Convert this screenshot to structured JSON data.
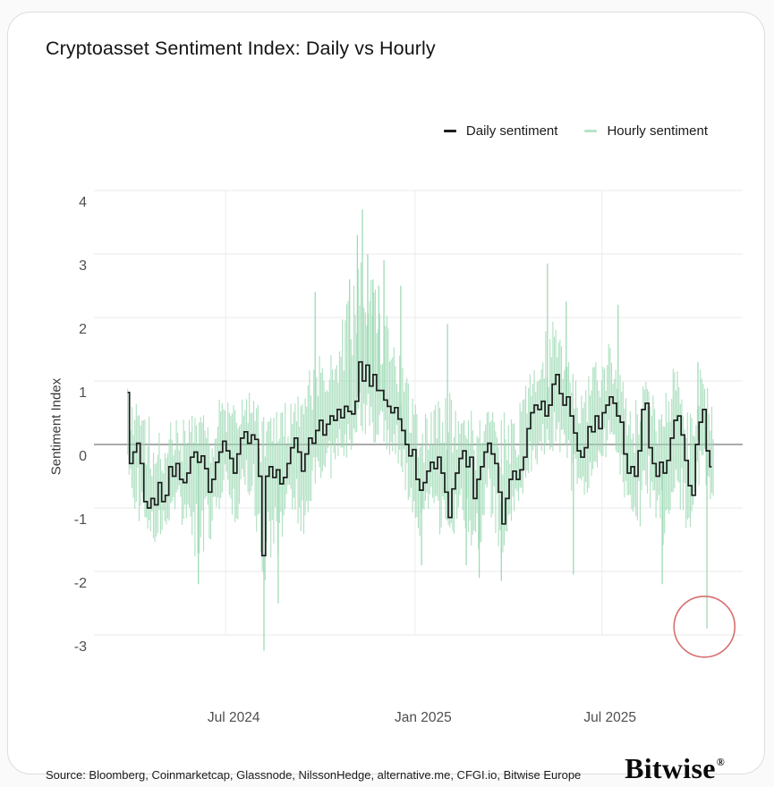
{
  "card": {
    "title": "Cryptoasset Sentiment Index: Daily vs Hourly",
    "source": "Source: Bloomberg, Coinmarketcap, Glassnode, NilssonHedge, alternative.me, CFGI.io, Bitwise Europe",
    "logo_text": "Bitwise",
    "logo_registered": "®"
  },
  "legend": {
    "daily": {
      "label": "Daily sentiment",
      "color": "#1d1d1d"
    },
    "hourly": {
      "label": "Hourly sentiment",
      "color": "#b7e4c7"
    }
  },
  "colors": {
    "grid": "#e8e8e8",
    "grid_vertical": "#ededed",
    "zero_line": "#8f8f8f",
    "daily_line": "#1d1d1d",
    "hourly_stroke": "#9ad8b2",
    "annotation_red": "#d66f6f"
  },
  "chart_data": {
    "type": "line",
    "title": "Cryptoasset Sentiment Index: Daily vs Hourly",
    "xlabel": "",
    "ylabel": "Sentiment Index",
    "ylim": [
      -3.5,
      4.3
    ],
    "yticks": [
      4,
      3,
      2,
      1,
      0,
      -1,
      -2,
      -3
    ],
    "xticks": [
      {
        "label": "Jul 2024",
        "f": 0.203
      },
      {
        "label": "Jan 2025",
        "f": 0.495
      },
      {
        "label": "Jul 2025",
        "f": 0.783
      }
    ],
    "grid": "horizontal gridlines at integer ticks, vertical at month ticks, emphasized zero line",
    "legend_position": "top-right",
    "series": [
      {
        "name": "Daily sentiment",
        "color": "#1d1d1d",
        "f_start": 0.052,
        "f_end": 0.952,
        "values": [
          0.82,
          -0.3,
          -0.12,
          0.02,
          -0.3,
          -0.9,
          -1.0,
          -0.85,
          -0.95,
          -0.6,
          -0.9,
          -0.8,
          -0.35,
          -0.5,
          -0.3,
          -0.55,
          -0.6,
          -0.45,
          -0.2,
          -0.12,
          -0.28,
          -0.18,
          -0.38,
          -0.75,
          -0.55,
          -0.28,
          -0.12,
          0.05,
          -0.1,
          -0.22,
          -0.45,
          -0.15,
          0.1,
          0.2,
          0.02,
          0.15,
          0.08,
          -0.5,
          -1.75,
          -0.5,
          -0.35,
          -0.52,
          -0.4,
          -0.62,
          -0.52,
          -0.3,
          -0.05,
          0.1,
          -0.12,
          -0.42,
          -0.15,
          0.1,
          0.02,
          0.22,
          0.38,
          0.15,
          0.32,
          0.45,
          0.38,
          0.55,
          0.42,
          0.6,
          0.52,
          0.48,
          0.68,
          1.3,
          1.0,
          1.25,
          0.92,
          1.1,
          0.85,
          0.85,
          0.7,
          0.6,
          0.5,
          0.58,
          0.4,
          0.22,
          0.0,
          -0.18,
          -0.08,
          -0.55,
          -0.72,
          -0.6,
          -0.42,
          -0.28,
          -0.38,
          -0.2,
          -0.45,
          -0.75,
          -1.15,
          -0.7,
          -0.45,
          -0.22,
          -0.1,
          -0.35,
          -0.2,
          -0.85,
          -0.55,
          -0.35,
          -0.12,
          0.02,
          -0.15,
          -0.3,
          -0.75,
          -1.25,
          -0.85,
          -0.55,
          -0.42,
          -0.55,
          -0.4,
          -0.2,
          0.25,
          0.5,
          0.62,
          0.55,
          0.68,
          0.45,
          0.62,
          0.95,
          1.1,
          0.8,
          0.62,
          0.75,
          0.45,
          0.18,
          -0.1,
          -0.2,
          -0.05,
          0.28,
          0.2,
          0.45,
          0.25,
          0.5,
          0.62,
          0.75,
          0.65,
          0.45,
          0.35,
          -0.15,
          -0.45,
          -0.35,
          -0.5,
          -0.1,
          0.55,
          0.65,
          -0.05,
          -0.3,
          -0.5,
          -0.28,
          -0.45,
          -0.25,
          0.1,
          0.38,
          0.45,
          0.15,
          -0.25,
          -0.65,
          -0.8,
          0.0,
          0.35,
          0.55,
          -0.1,
          -0.35
        ]
      },
      {
        "name": "Hourly sentiment",
        "color": "#9ad8b2",
        "band": [
          [
            0.052,
            -0.6,
            0.9
          ],
          [
            0.076,
            -1.3,
            0.4
          ],
          [
            0.097,
            -1.5,
            0.1
          ],
          [
            0.117,
            -1.1,
            0.35
          ],
          [
            0.138,
            -1.2,
            0.3
          ],
          [
            0.161,
            -1.7,
            0.5
          ],
          [
            0.179,
            -1.5,
            0.4
          ],
          [
            0.2,
            -0.9,
            0.7
          ],
          [
            0.218,
            -1.2,
            0.6
          ],
          [
            0.239,
            -0.8,
            0.9
          ],
          [
            0.262,
            -2.1,
            0.4
          ],
          [
            0.283,
            -1.7,
            0.4
          ],
          [
            0.303,
            -1.0,
            0.7
          ],
          [
            0.324,
            -1.3,
            0.8
          ],
          [
            0.341,
            -0.6,
            1.6
          ],
          [
            0.359,
            -0.5,
            1.3
          ],
          [
            0.379,
            -0.3,
            1.7
          ],
          [
            0.4,
            -0.1,
            2.4
          ],
          [
            0.414,
            0.2,
            3.0
          ],
          [
            0.432,
            0.1,
            2.4
          ],
          [
            0.448,
            -0.1,
            2.0
          ],
          [
            0.466,
            -0.2,
            1.5
          ],
          [
            0.483,
            -0.8,
            1.0
          ],
          [
            0.503,
            -1.5,
            0.4
          ],
          [
            0.524,
            -1.1,
            0.5
          ],
          [
            0.545,
            -1.7,
            0.8
          ],
          [
            0.566,
            -0.9,
            0.6
          ],
          [
            0.588,
            -1.8,
            0.4
          ],
          [
            0.607,
            -1.0,
            0.6
          ],
          [
            0.628,
            -1.9,
            0.3
          ],
          [
            0.648,
            -1.2,
            0.3
          ],
          [
            0.669,
            -0.5,
            1.1
          ],
          [
            0.69,
            -0.2,
            1.5
          ],
          [
            0.71,
            0.0,
            1.9
          ],
          [
            0.731,
            -0.5,
            1.5
          ],
          [
            0.752,
            -0.9,
            0.8
          ],
          [
            0.772,
            -0.5,
            1.2
          ],
          [
            0.793,
            -0.1,
            1.5
          ],
          [
            0.814,
            -0.8,
            1.1
          ],
          [
            0.834,
            -1.4,
            0.5
          ],
          [
            0.855,
            -0.8,
            1.2
          ],
          [
            0.876,
            -1.5,
            0.5
          ],
          [
            0.897,
            -0.7,
            1.3
          ],
          [
            0.917,
            -1.4,
            0.3
          ],
          [
            0.935,
            -0.5,
            1.2
          ],
          [
            0.952,
            -1.3,
            0.7
          ]
        ],
        "spikes": [
          [
            0.161,
            -2.2
          ],
          [
            0.262,
            -3.25
          ],
          [
            0.284,
            -2.5
          ],
          [
            0.341,
            2.4
          ],
          [
            0.394,
            2.6
          ],
          [
            0.406,
            3.3
          ],
          [
            0.414,
            3.7
          ],
          [
            0.422,
            3.0
          ],
          [
            0.43,
            2.6
          ],
          [
            0.439,
            2.5
          ],
          [
            0.447,
            2.9
          ],
          [
            0.473,
            2.5
          ],
          [
            0.505,
            -1.9
          ],
          [
            0.545,
            1.9
          ],
          [
            0.574,
            -1.9
          ],
          [
            0.594,
            -2.1
          ],
          [
            0.628,
            -2.15
          ],
          [
            0.699,
            2.85
          ],
          [
            0.728,
            2.25
          ],
          [
            0.739,
            -2.05
          ],
          [
            0.808,
            2.2
          ],
          [
            0.876,
            -2.2
          ],
          [
            0.931,
            1.3
          ],
          [
            0.945,
            -2.9
          ]
        ]
      }
    ],
    "annotation_circle": {
      "f": 0.941,
      "v": -2.87,
      "radius_px": 34,
      "color": "#d66f6f"
    }
  }
}
